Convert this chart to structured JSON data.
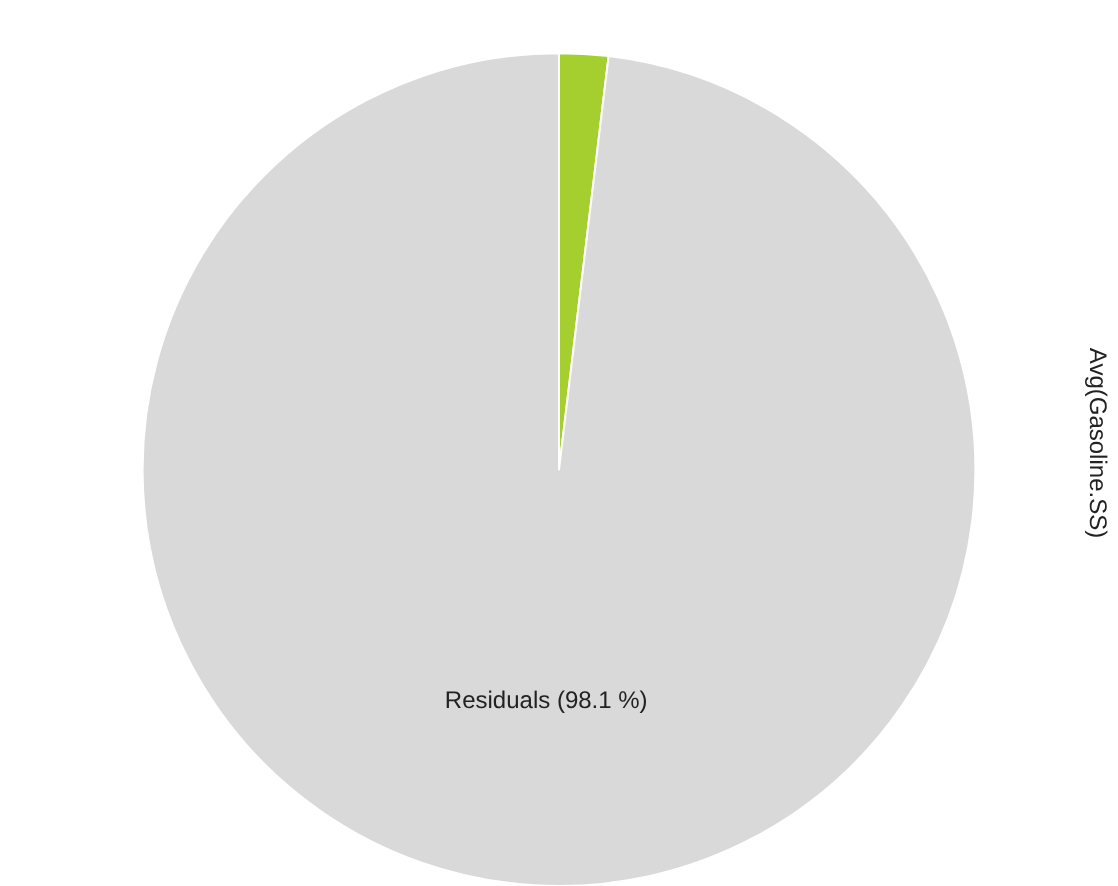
{
  "chart_data": {
    "type": "pie",
    "categories": [
      null,
      "Residuals (98.1 %)"
    ],
    "values": [
      1.9,
      98.1
    ],
    "colors": [
      "#a4cf2e",
      "#d9d9d9"
    ],
    "annotations": [
      "Avg(Gasoline.SS)"
    ]
  }
}
